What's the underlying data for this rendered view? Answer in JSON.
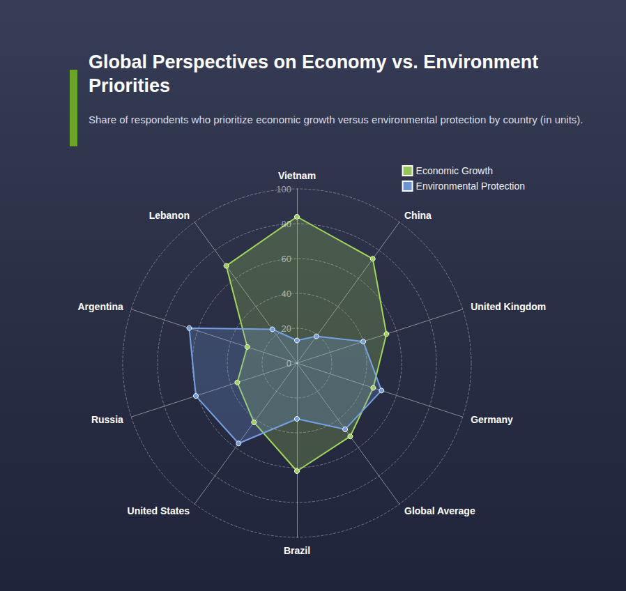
{
  "chart_data": {
    "type": "radar",
    "title": "Global Perspectives on Economy vs. Environment Priorities",
    "subtitle": "Share of respondents who prioritize economic growth versus environmental protection by country (in units).",
    "categories": [
      "Vietnam",
      "Lebanon",
      "Argentina",
      "Russia",
      "United States",
      "Brazil",
      "Global Average",
      "Germany",
      "United Kingdom",
      "China"
    ],
    "series": [
      {
        "name": "Economic Growth",
        "color": "#a3d65a",
        "values": [
          84,
          69,
          30,
          36,
          42,
          62,
          52,
          46,
          54,
          74
        ]
      },
      {
        "name": "Environmental Protection",
        "color": "#76a0e2",
        "values": [
          13,
          24,
          65,
          61,
          57,
          32,
          47,
          51,
          40,
          19
        ]
      }
    ],
    "ylim": [
      0,
      100
    ],
    "yticks": [
      0,
      20,
      40,
      60,
      80,
      100
    ],
    "grid": true,
    "legend": "top-right"
  }
}
